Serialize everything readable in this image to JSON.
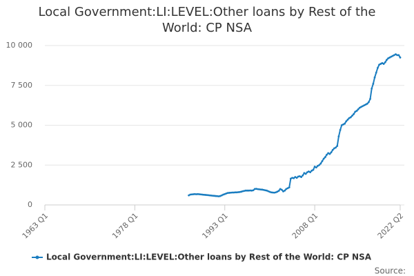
{
  "chart_data": {
    "type": "line",
    "title": "Local Government:LI:LEVEL:Other loans by Rest of the World: CP NSA",
    "source": "Source:",
    "categories": [
      "1963 Q1",
      null,
      null,
      null,
      null,
      null,
      null,
      null,
      null,
      null,
      null,
      null,
      null,
      null,
      null,
      null,
      null,
      null,
      null,
      null,
      null,
      null,
      null,
      null,
      null,
      null,
      null,
      null,
      null,
      null,
      null,
      null,
      null,
      null,
      null,
      null,
      null,
      null,
      null,
      null,
      null,
      null,
      null,
      null,
      null,
      null,
      null,
      null,
      null,
      null,
      null,
      null,
      null,
      null,
      null,
      null,
      null,
      null,
      null,
      null,
      "1978 Q1",
      null,
      null,
      null,
      null,
      null,
      null,
      null,
      null,
      null,
      null,
      null,
      null,
      null,
      null,
      null,
      null,
      null,
      null,
      null,
      null,
      null,
      null,
      null,
      null,
      null,
      null,
      null,
      null,
      null,
      null,
      null,
      null,
      null,
      null,
      null,
      null,
      null,
      null,
      null,
      null,
      null,
      null,
      null,
      null,
      null,
      null,
      null,
      null,
      null,
      null,
      null,
      null,
      null,
      null,
      null,
      null,
      null,
      null,
      null,
      "1993 Q1",
      null,
      null,
      null,
      null,
      null,
      null,
      null,
      null,
      null,
      null,
      null,
      null,
      null,
      null,
      null,
      null,
      null,
      null,
      null,
      null,
      null,
      null,
      null,
      null,
      null,
      null,
      null,
      null,
      null,
      null,
      null,
      null,
      null,
      null,
      null,
      null,
      null,
      null,
      null,
      null,
      null,
      null,
      null,
      null,
      null,
      null,
      null,
      null,
      null,
      null,
      null,
      null,
      null,
      null,
      null,
      null,
      null,
      null,
      null,
      "2008 Q1",
      null,
      null,
      null,
      null,
      null,
      null,
      null,
      null,
      null,
      null,
      null,
      null,
      null,
      null,
      null,
      null,
      null,
      null,
      null,
      null,
      null,
      null,
      null,
      null,
      null,
      null,
      null,
      null,
      null,
      null,
      null,
      null,
      null,
      null,
      null,
      null,
      null,
      null,
      null,
      null,
      null,
      null,
      null,
      null,
      null,
      null,
      null,
      null,
      null,
      null,
      null,
      null,
      null,
      null,
      null,
      null,
      "2022 Q2"
    ],
    "series": [
      {
        "name": "Local Government:LI:LEVEL:Other loans by Rest of the World: CP NSA",
        "color": "#1a7dc0",
        "values": [
          null,
          null,
          null,
          null,
          null,
          null,
          null,
          null,
          null,
          null,
          null,
          null,
          null,
          null,
          null,
          null,
          null,
          null,
          null,
          null,
          null,
          null,
          null,
          null,
          null,
          null,
          null,
          null,
          null,
          null,
          null,
          null,
          null,
          null,
          null,
          null,
          null,
          null,
          null,
          null,
          null,
          null,
          null,
          null,
          null,
          null,
          null,
          null,
          null,
          null,
          null,
          null,
          null,
          null,
          null,
          null,
          null,
          null,
          null,
          null,
          null,
          null,
          null,
          null,
          null,
          null,
          null,
          null,
          null,
          null,
          null,
          null,
          null,
          null,
          null,
          null,
          null,
          null,
          null,
          null,
          null,
          null,
          null,
          null,
          null,
          null,
          null,
          null,
          null,
          null,
          null,
          null,
          null,
          null,
          null,
          null,
          600,
          650,
          660,
          670,
          680,
          670,
          680,
          670,
          660,
          650,
          640,
          630,
          620,
          610,
          600,
          590,
          580,
          570,
          560,
          550,
          540,
          560,
          600,
          650,
          680,
          720,
          750,
          760,
          770,
          780,
          780,
          790,
          790,
          800,
          810,
          830,
          860,
          880,
          900,
          900,
          900,
          910,
          900,
          920,
          1000,
          1010,
          990,
          980,
          970,
          960,
          940,
          920,
          900,
          860,
          820,
          790,
          780,
          770,
          790,
          830,
          880,
          1000,
          950,
          850,
          900,
          1000,
          1050,
          1100,
          1650,
          1700,
          1680,
          1750,
          1700,
          1780,
          1800,
          1750,
          1850,
          2000,
          1950,
          2050,
          2100,
          2050,
          2150,
          2200,
          2400,
          2350,
          2450,
          2500,
          2600,
          2750,
          2900,
          3000,
          3150,
          3250,
          3200,
          3300,
          3450,
          3550,
          3600,
          3700,
          4300,
          4700,
          5000,
          5050,
          5100,
          5250,
          5350,
          5450,
          5500,
          5600,
          5700,
          5850,
          5900,
          6000,
          6100,
          6150,
          6200,
          6250,
          6300,
          6350,
          6450,
          6650,
          7300,
          7600,
          8000,
          8300,
          8600,
          8800,
          8850,
          8900,
          8850,
          8950,
          9100,
          9200,
          9250,
          9300,
          9350,
          9400,
          9450,
          9400,
          9400,
          9250
        ]
      }
    ],
    "ylim": [
      0,
      10000
    ],
    "yticks": [
      0,
      {
        "value": 2500,
        "label": "2 500"
      },
      {
        "value": 5000,
        "label": "5 000"
      },
      {
        "value": 7500,
        "label": "7 500"
      },
      {
        "value": 10000,
        "label": "10 000"
      }
    ],
    "grid": true
  }
}
